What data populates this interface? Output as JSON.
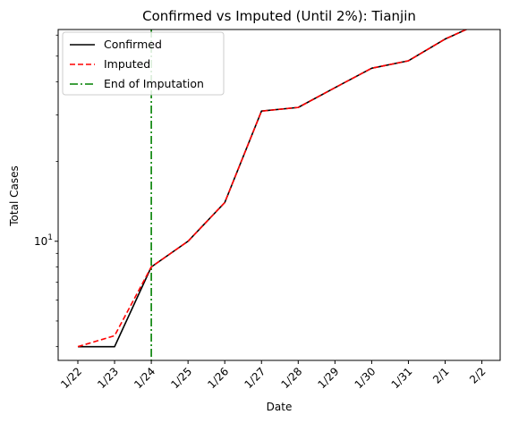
{
  "chart_data": {
    "type": "line",
    "title": "Confirmed vs Imputed (Until 2%): Tianjin",
    "xlabel": "Date",
    "ylabel": "Total Cases",
    "yscale": "log",
    "ylim": [
      3.55,
      63
    ],
    "categories": [
      "1/22",
      "1/23",
      "1/24",
      "1/25",
      "1/26",
      "1/27",
      "1/28",
      "1/29",
      "1/30",
      "1/31",
      "2/1",
      "2/2"
    ],
    "ytick_labels": [
      {
        "value": 10,
        "base": "10",
        "exp": "1"
      }
    ],
    "series": [
      {
        "name": "Confirmed",
        "color": "#000000",
        "style": "solid",
        "values": [
          4,
          4,
          8,
          10,
          14,
          31,
          32,
          38,
          45,
          48,
          58,
          67
        ]
      },
      {
        "name": "Imputed",
        "color": "#ff0000",
        "style": "dashed",
        "values": [
          4,
          4.4,
          8,
          10,
          14,
          31,
          32,
          38,
          45,
          48,
          58,
          67
        ]
      }
    ],
    "vline": {
      "name": "End of Imputation",
      "x": "1/24",
      "color": "#008000",
      "style": "dashdot"
    },
    "legend": {
      "position": "top-left"
    },
    "grid": false
  }
}
